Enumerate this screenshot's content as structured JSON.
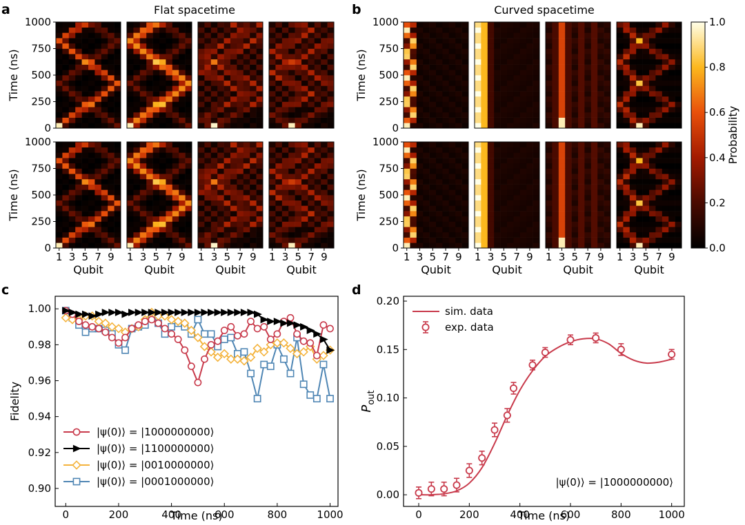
{
  "panels": {
    "a": {
      "letter": "a",
      "title": "Flat spacetime"
    },
    "b": {
      "letter": "b",
      "title": "Curved spacetime"
    },
    "c": {
      "letter": "c"
    },
    "d": {
      "letter": "d"
    }
  },
  "colors": {
    "red": "#c8394a",
    "black": "#000000",
    "orange": "#f4b33c",
    "blue": "#4f86b4",
    "axis": "#000000"
  },
  "chart_data": [
    {
      "id": "heatmap-flat",
      "type": "heatmap",
      "title": "Flat spacetime",
      "xlabel": "Qubit",
      "ylabel": "Time (ns)",
      "xticks": [
        "1",
        "3",
        "5",
        "7",
        "9"
      ],
      "yticks": [
        0,
        250,
        500,
        750,
        1000
      ],
      "ylim": [
        0,
        1000
      ],
      "qubits": 10,
      "time_bins": 20,
      "panels": [
        {
          "row": 0,
          "col": 0,
          "initial_qubit": 1,
          "pattern": "bounce"
        },
        {
          "row": 0,
          "col": 1,
          "initial_qubit": 1,
          "pattern": "bounce-broad"
        },
        {
          "row": 0,
          "col": 2,
          "initial_qubit": 3,
          "pattern": "interference"
        },
        {
          "row": 0,
          "col": 3,
          "initial_qubit": 4,
          "pattern": "interference"
        },
        {
          "row": 1,
          "col": 0,
          "initial_qubit": 1,
          "pattern": "bounce"
        },
        {
          "row": 1,
          "col": 1,
          "initial_qubit": 1,
          "pattern": "bounce-broad"
        },
        {
          "row": 1,
          "col": 2,
          "initial_qubit": 3,
          "pattern": "interference"
        },
        {
          "row": 1,
          "col": 3,
          "initial_qubit": 4,
          "pattern": "interference"
        }
      ]
    },
    {
      "id": "heatmap-curved",
      "type": "heatmap",
      "title": "Curved spacetime",
      "xlabel": "Qubit",
      "ylabel": "Time (ns)",
      "xticks": [
        "1",
        "3",
        "5",
        "7",
        "9"
      ],
      "yticks": [
        0,
        250,
        500,
        750,
        1000
      ],
      "ylim": [
        0,
        1000
      ],
      "qubits": 10,
      "time_bins": 20,
      "colorbar": {
        "label": "Probability",
        "ticks": [
          "0.0",
          "0.2",
          "0.4",
          "0.6",
          "0.8",
          "1.0"
        ],
        "range": [
          0,
          1
        ]
      },
      "panels": [
        {
          "row": 0,
          "col": 0,
          "initial_qubit": 1,
          "pattern": "oscillate-edge"
        },
        {
          "row": 0,
          "col": 1,
          "initial_qubit": 1,
          "pattern": "trapped-pair"
        },
        {
          "row": 0,
          "col": 2,
          "initial_qubit": 3,
          "pattern": "columns"
        },
        {
          "row": 0,
          "col": 3,
          "initial_qubit": 4,
          "pattern": "reflect"
        },
        {
          "row": 1,
          "col": 0,
          "initial_qubit": 1,
          "pattern": "oscillate-edge"
        },
        {
          "row": 1,
          "col": 1,
          "initial_qubit": 1,
          "pattern": "trapped-pair"
        },
        {
          "row": 1,
          "col": 2,
          "initial_qubit": 3,
          "pattern": "columns"
        },
        {
          "row": 1,
          "col": 3,
          "initial_qubit": 4,
          "pattern": "reflect"
        }
      ]
    },
    {
      "id": "fidelity",
      "type": "line",
      "xlabel": "Time (ns)",
      "ylabel": "Fidelity",
      "xlim": [
        -40,
        1030
      ],
      "ylim": [
        0.89,
        1.007
      ],
      "xticks": [
        0,
        200,
        400,
        600,
        800,
        1000
      ],
      "xtick_labels": [
        "0",
        "200",
        "400",
        "600",
        "800",
        "1000"
      ],
      "yticks": [
        0.9,
        0.92,
        0.94,
        0.96,
        0.98,
        1.0
      ],
      "ytick_labels": [
        "0.90",
        "0.92",
        "0.94",
        "0.96",
        "0.98",
        "1.00"
      ],
      "legend_position": "bottom-left",
      "x": [
        0,
        25,
        50,
        75,
        100,
        125,
        150,
        175,
        200,
        225,
        250,
        275,
        300,
        325,
        350,
        375,
        400,
        425,
        450,
        475,
        500,
        525,
        550,
        575,
        600,
        625,
        650,
        675,
        700,
        725,
        750,
        775,
        800,
        825,
        850,
        875,
        900,
        925,
        950,
        975,
        1000
      ],
      "series": [
        {
          "name": "|ψ(0)⟩ = |1000000000⟩",
          "color": "red",
          "marker": "circle",
          "values": [
            0.999,
            0.997,
            0.993,
            0.991,
            0.99,
            0.989,
            0.987,
            0.984,
            0.981,
            0.984,
            0.989,
            0.991,
            0.993,
            0.994,
            0.992,
            0.989,
            0.986,
            0.983,
            0.977,
            0.968,
            0.959,
            0.972,
            0.98,
            0.982,
            0.988,
            0.99,
            0.985,
            0.986,
            0.993,
            0.989,
            0.99,
            0.983,
            0.986,
            0.993,
            0.995,
            0.986,
            0.982,
            0.981,
            0.974,
            0.991,
            0.989
          ]
        },
        {
          "name": "|ψ(0)⟩ = |1100000000⟩",
          "color": "black",
          "marker": "triangle-right",
          "values": [
            0.999,
            0.998,
            0.997,
            0.997,
            0.996,
            0.997,
            0.998,
            0.998,
            0.998,
            0.997,
            0.998,
            0.998,
            0.998,
            0.998,
            0.998,
            0.998,
            0.998,
            0.998,
            0.998,
            0.998,
            0.998,
            0.998,
            0.998,
            0.998,
            0.998,
            0.998,
            0.998,
            0.998,
            0.998,
            0.997,
            0.994,
            0.993,
            0.993,
            0.992,
            0.992,
            0.991,
            0.99,
            0.988,
            0.986,
            0.983,
            0.977
          ]
        },
        {
          "name": "|ψ(0)⟩ = |0010000000⟩",
          "color": "orange",
          "marker": "diamond",
          "values": [
            0.995,
            0.994,
            0.994,
            0.996,
            0.996,
            0.993,
            0.992,
            0.99,
            0.989,
            0.987,
            0.989,
            0.99,
            0.994,
            0.998,
            0.996,
            0.996,
            0.994,
            0.993,
            0.992,
            0.988,
            0.984,
            0.979,
            0.976,
            0.973,
            0.975,
            0.972,
            0.972,
            0.971,
            0.973,
            0.978,
            0.976,
            0.98,
            0.981,
            0.981,
            0.978,
            0.975,
            0.976,
            0.979,
            0.972,
            0.974,
            0.977
          ]
        },
        {
          "name": "|ψ(0)⟩ = |0001000000⟩",
          "color": "blue",
          "marker": "square",
          "values": [
            0.999,
            0.995,
            0.991,
            0.987,
            0.989,
            0.989,
            0.988,
            0.986,
            0.98,
            0.977,
            0.989,
            0.99,
            0.991,
            0.997,
            0.992,
            0.986,
            0.99,
            0.992,
            0.99,
            0.986,
            0.994,
            0.986,
            0.986,
            0.979,
            0.983,
            0.984,
            0.975,
            0.976,
            0.964,
            0.95,
            0.969,
            0.968,
            0.98,
            0.972,
            0.964,
            0.984,
            0.958,
            0.952,
            0.95,
            0.969,
            0.95
          ]
        }
      ]
    },
    {
      "id": "pout",
      "type": "line",
      "xlabel": "Time (ns)",
      "ylabel_main": "P",
      "ylabel_sub": "out",
      "xlim": [
        -60,
        1050
      ],
      "ylim": [
        -0.012,
        0.205
      ],
      "xticks": [
        0,
        200,
        400,
        600,
        800,
        1000
      ],
      "xtick_labels": [
        "0",
        "200",
        "400",
        "600",
        "800",
        "1000"
      ],
      "yticks": [
        0,
        0.05,
        0.1,
        0.15,
        0.2
      ],
      "ytick_labels": [
        "0.00",
        "0.05",
        "0.10",
        "0.15",
        "0.20"
      ],
      "legend_position": "top-left",
      "annotation": "|ψ(0)⟩ = |1000000000⟩",
      "sim": {
        "name": "sim. data",
        "x": [
          0,
          50,
          100,
          150,
          200,
          250,
          300,
          350,
          400,
          450,
          500,
          550,
          600,
          650,
          700,
          750,
          800,
          850,
          900,
          950,
          1000
        ],
        "values": [
          0.0,
          0.0,
          0.001,
          0.004,
          0.012,
          0.028,
          0.053,
          0.082,
          0.108,
          0.128,
          0.143,
          0.152,
          0.158,
          0.161,
          0.161,
          0.156,
          0.146,
          0.139,
          0.136,
          0.137,
          0.14
        ]
      },
      "exp": {
        "name": "exp. data",
        "x": [
          0,
          50,
          100,
          150,
          200,
          250,
          300,
          350,
          375,
          450,
          500,
          600,
          700,
          800,
          1000
        ],
        "values": [
          0.002,
          0.006,
          0.006,
          0.01,
          0.025,
          0.038,
          0.067,
          0.082,
          0.11,
          0.134,
          0.147,
          0.16,
          0.162,
          0.15,
          0.145
        ],
        "errors": [
          0.006,
          0.007,
          0.007,
          0.007,
          0.007,
          0.007,
          0.007,
          0.007,
          0.006,
          0.005,
          0.005,
          0.005,
          0.005,
          0.006,
          0.005
        ]
      }
    }
  ]
}
